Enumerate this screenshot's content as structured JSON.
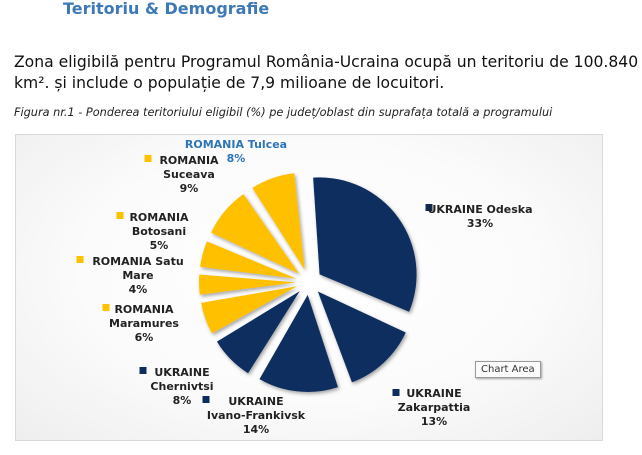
{
  "page": {
    "heading": "Teritoriu & Demografie",
    "intro": "Zona eligibilă pentru Programul România-Ucraina ocupă un teritoriu de 100.840 km². și include o populație de 7,9 milioane de locuitori.",
    "figure_caption": "Figura nr.1 - Ponderea teritoriului eligibil (%) pe județ/oblast din suprafața totală a programului",
    "tooltip": "Chart Area"
  },
  "chart_data": {
    "type": "pie",
    "title": "",
    "legend": "none",
    "colors": {
      "UKRAINE": "#0d2d5e",
      "ROMANIA": "#ffc000",
      "highlight_label": "#2e75b6"
    },
    "slices": [
      {
        "country": "UKRAINE",
        "region": "Odeska",
        "value": 33,
        "value_label": "33%"
      },
      {
        "country": "UKRAINE",
        "region": "Zakarpattia",
        "value": 13,
        "value_label": "13%"
      },
      {
        "country": "UKRAINE",
        "region": "Ivano-Frankivsk",
        "value": 14,
        "value_label": "14%"
      },
      {
        "country": "UKRAINE",
        "region": "Chernivtsi",
        "value": 8,
        "value_label": "8%"
      },
      {
        "country": "ROMANIA",
        "region": "Maramures",
        "value": 6,
        "value_label": "6%"
      },
      {
        "country": "ROMANIA",
        "region": "Satu Mare",
        "value": 4,
        "value_label": "4%"
      },
      {
        "country": "ROMANIA",
        "region": "Botosani",
        "value": 5,
        "value_label": "5%"
      },
      {
        "country": "ROMANIA",
        "region": "Suceava",
        "value": 9,
        "value_label": "9%"
      },
      {
        "country": "ROMANIA",
        "region": "Tulcea",
        "value": 8,
        "value_label": "8%"
      }
    ]
  }
}
